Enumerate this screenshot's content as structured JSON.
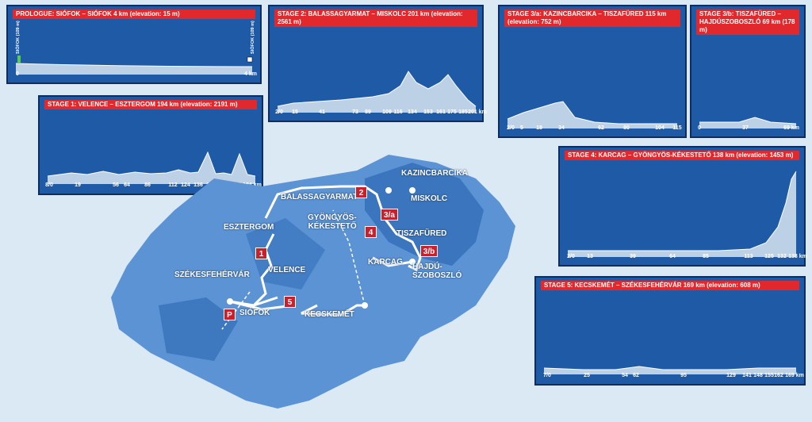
{
  "panels": {
    "prologue": {
      "title": "PROLOGUE: SIÓFOK – SIÓFOK 4 km (elevation: 15 m)",
      "start_label": "SIÓFOK (109 m)",
      "end_label": "SIÓFOK (109 m)",
      "km": [
        "0",
        "4 km"
      ]
    },
    "stage1": {
      "title": "STAGE 1: VELENCE – ESZTERGOM 194 km (elevation: 2191 m)",
      "km": [
        "8/0",
        "19",
        "56",
        "64",
        "86",
        "112",
        "124",
        "136",
        "152",
        "165",
        "177",
        "194 km"
      ]
    },
    "stage2": {
      "title": "STAGE 2: BALASSAGYARMAT – MISKOLC 201 km (elevation: 2561 m)",
      "km": [
        "2/0",
        "15",
        "41",
        "73",
        "89",
        "109",
        "116",
        "134",
        "153",
        "161",
        "175",
        "185",
        "201 km"
      ]
    },
    "stage3a": {
      "title": "STAGE 3/a: KAZINCBARCIKA – TISZAFÜRED 115 km (elevation: 752 m)",
      "km": [
        "2/0",
        "5",
        "18",
        "34",
        "62",
        "80",
        "104",
        "115"
      ]
    },
    "stage3b": {
      "title": "STAGE 3/b: TISZAFÜRED – HAJDÚSZOBOSZLÓ 69 km (178 m)",
      "km": [
        "0",
        "37",
        "69 km"
      ]
    },
    "stage4": {
      "title": "STAGE 4: KARCAG – GYÖNGYÖS-KÉKESTETŐ 138 km (elevation: 1453 m)",
      "km": [
        "2/0",
        "13",
        "39",
        "64",
        "85",
        "113",
        "125",
        "132",
        "138 km"
      ]
    },
    "stage5": {
      "title": "STAGE 5: KECSKEMÉT – SZÉKESFEHÉRVÁR 169 km (elevation: 608 m)",
      "km": [
        "7/0",
        "25",
        "54",
        "62",
        "95",
        "129",
        "141",
        "148",
        "155",
        "162",
        "169 km"
      ]
    }
  },
  "cities": {
    "kazincbarcika": "KAZINCBARCIKA",
    "balassagyarmat": "BALASSAGYARMAT",
    "miskolc": "MISKOLC",
    "gyongyos": "GYÖNGYÖS-\nKÉKESTETŐ",
    "tiszafured": "TISZAFÜRED",
    "esztergom": "ESZTERGOM",
    "karcag": "KARCAG",
    "hajduszoboszlo": "HAJDÚ-\nSZOBOSZLÓ",
    "velence": "VELENCE",
    "szekesfehervar": "SZÉKESFEHÉRVÁR",
    "kecskemet": "KECSKEMÉT",
    "siofok": "SIÓFOK"
  },
  "badges": {
    "s1": "1",
    "s2": "2",
    "s3a": "3/a",
    "s3b": "3/b",
    "s4": "4",
    "s5": "5",
    "p": "P"
  },
  "colors": {
    "map_light": "#5b93d4",
    "map_dark": "#2c68b3",
    "route": "#ffffff",
    "badge": "#c8202c",
    "panel": "#1f5aa6"
  }
}
